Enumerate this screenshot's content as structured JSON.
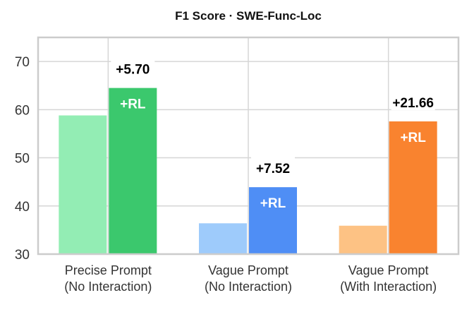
{
  "chart_data": {
    "type": "bar",
    "title": "F1 Score · SWE-Func-Loc",
    "xlabel": "",
    "ylabel": "",
    "ylim": [
      30,
      75
    ],
    "yticks": [
      30,
      40,
      50,
      60,
      70
    ],
    "grid": true,
    "categories": [
      "Precise Prompt\n(No Interaction)",
      "Vague Prompt\n(No Interaction)",
      "Vague Prompt\n(With Interaction)"
    ],
    "series": [
      {
        "values": [
          58.8,
          36.4,
          35.9
        ],
        "colors": [
          "#93edb4",
          "#9ecbfb",
          "#fdc284"
        ]
      },
      {
        "values": [
          64.5,
          43.9,
          57.56
        ],
        "colors": [
          "#3bc86d",
          "#4f8ef5",
          "#f9832f"
        ],
        "bar_label": "+RL"
      }
    ],
    "annotations": [
      "+5.70",
      "+7.52",
      "+21.66"
    ]
  }
}
